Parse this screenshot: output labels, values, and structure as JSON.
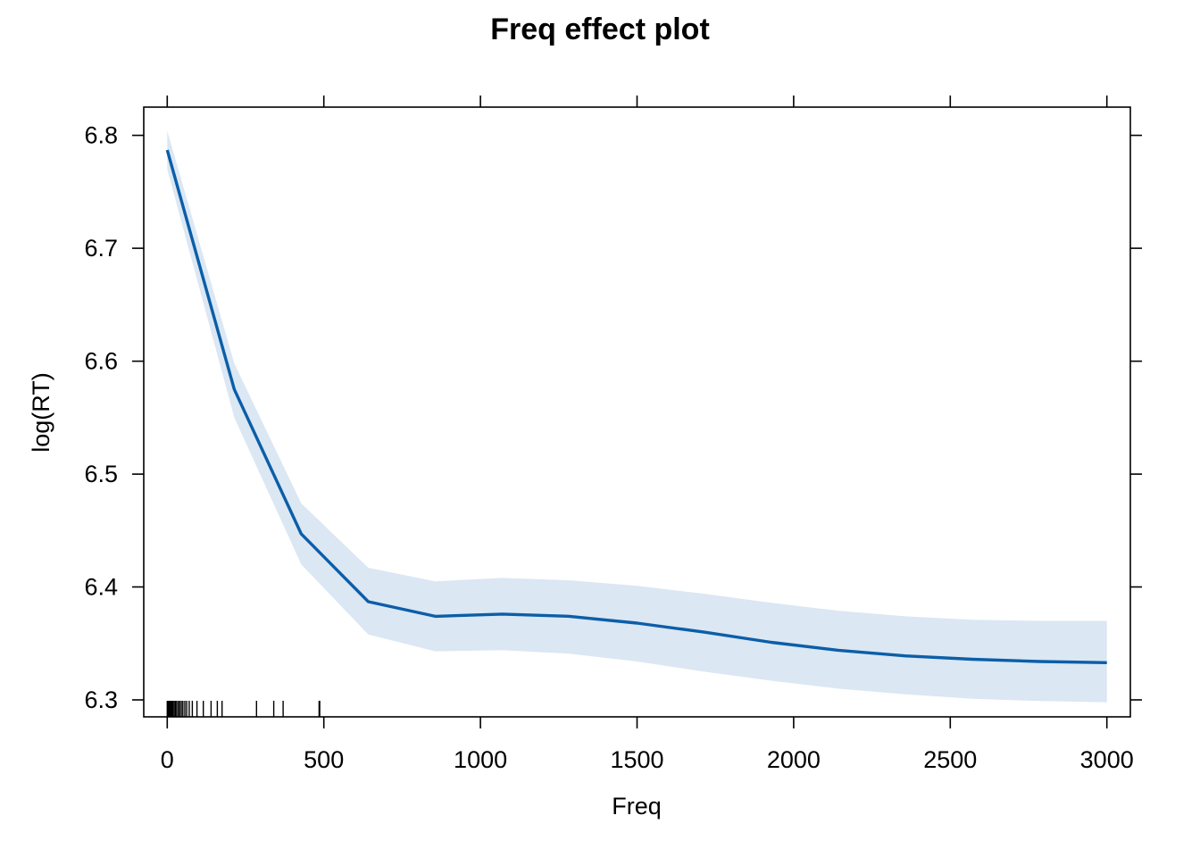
{
  "chart_data": {
    "type": "line",
    "title": "Freq effect plot",
    "xlabel": "Freq",
    "ylabel": "log(RT)",
    "xlim": [
      -75,
      3075
    ],
    "ylim": [
      6.285,
      6.825
    ],
    "xticks": [
      0,
      500,
      1000,
      1500,
      2000,
      2500,
      3000
    ],
    "xtick_labels": [
      "0",
      "500",
      "1000",
      "1500",
      "2000",
      "2500",
      "3000"
    ],
    "yticks": [
      6.3,
      6.4,
      6.5,
      6.6,
      6.7,
      6.8
    ],
    "ytick_labels": [
      "6.3",
      "6.4",
      "6.5",
      "6.6",
      "6.7",
      "6.8"
    ],
    "grid": false,
    "line_color": "#0b5ea8",
    "band_color": "#dbe7f3",
    "x": [
      0,
      214,
      428,
      642,
      856,
      1070,
      1284,
      1500,
      1714,
      1928,
      2142,
      2356,
      2570,
      2784,
      3000
    ],
    "fit": [
      6.787,
      6.575,
      6.447,
      6.387,
      6.374,
      6.376,
      6.374,
      6.368,
      6.36,
      6.351,
      6.344,
      6.339,
      6.336,
      6.334,
      6.333
    ],
    "lower": [
      6.77,
      6.55,
      6.42,
      6.358,
      6.343,
      6.344,
      6.341,
      6.334,
      6.325,
      6.317,
      6.31,
      6.305,
      6.301,
      6.299,
      6.298
    ],
    "upper": [
      6.804,
      6.598,
      6.474,
      6.417,
      6.405,
      6.408,
      6.406,
      6.401,
      6.394,
      6.386,
      6.379,
      6.374,
      6.371,
      6.37,
      6.37
    ],
    "rug": [
      0,
      3,
      6,
      9,
      12,
      15,
      18,
      22,
      26,
      30,
      35,
      40,
      45,
      50,
      56,
      62,
      70,
      80,
      95,
      115,
      140,
      160,
      175,
      285,
      340,
      370,
      485,
      487
    ]
  }
}
